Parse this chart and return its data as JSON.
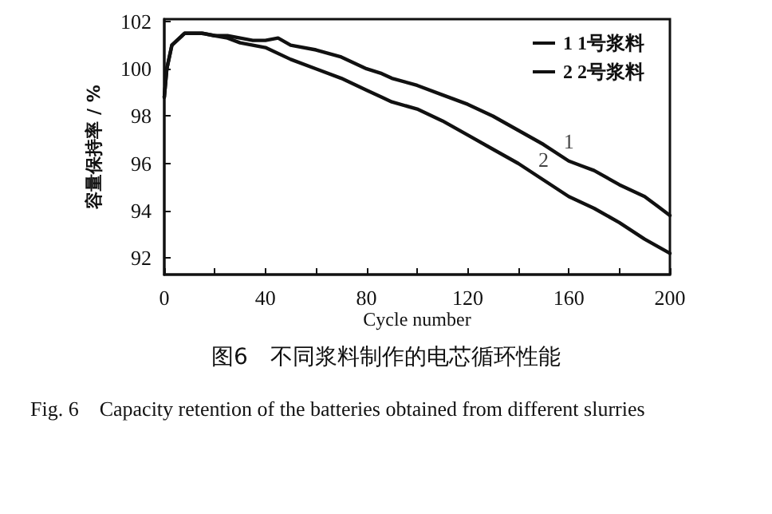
{
  "chart_data": {
    "type": "line",
    "title": "图6　不同浆料制作的电芯循环性能",
    "subtitle": "Fig. 6　Capacity retention of the batteries obtained from different slurries",
    "xlabel": "Cycle number",
    "ylabel": "容量保持率 / %",
    "xlim": [
      0,
      200
    ],
    "xticks": [
      0,
      {
        "value": 20,
        "label": null
      },
      40,
      {
        "value": 60,
        "label": null
      },
      80,
      {
        "value": 100,
        "label": null
      },
      120,
      {
        "value": 140,
        "label": null
      },
      160,
      {
        "value": 180,
        "label": null
      },
      200
    ],
    "ylim": [
      91.3,
      102.1
    ],
    "yticks": [
      92,
      94,
      96,
      98,
      100,
      102
    ],
    "grid": false,
    "legend": "top right",
    "marker": "none",
    "line_style": "solid",
    "series": [
      {
        "name": "1 1号浆料",
        "color": "#111111",
        "x": [
          0,
          1,
          3,
          8,
          15,
          20,
          25,
          30,
          35,
          40,
          45,
          50,
          60,
          70,
          80,
          86,
          90,
          100,
          110,
          120,
          130,
          140,
          150,
          160,
          165,
          170,
          180,
          190,
          195,
          200
        ],
        "values": [
          98.8,
          100,
          101,
          101.5,
          101.5,
          101.4,
          101.4,
          101.3,
          101.2,
          101.2,
          101.3,
          101,
          100.8,
          100.5,
          100,
          99.8,
          99.6,
          99.3,
          98.9,
          98.5,
          98,
          97.4,
          96.8,
          96.1,
          95.9,
          95.7,
          95.1,
          94.6,
          94.2,
          93.8
        ]
      },
      {
        "name": "2 2号浆料",
        "color": "#111111",
        "x": [
          0,
          1,
          3,
          8,
          15,
          20,
          25,
          30,
          40,
          50,
          60,
          70,
          80,
          86,
          90,
          100,
          110,
          120,
          130,
          140,
          150,
          160,
          170,
          180,
          190,
          200
        ],
        "values": [
          98.8,
          100,
          101,
          101.5,
          101.5,
          101.4,
          101.3,
          101.1,
          100.9,
          100.4,
          100,
          99.6,
          99.1,
          98.8,
          98.6,
          98.3,
          97.8,
          97.2,
          96.6,
          96,
          95.3,
          94.6,
          94.1,
          93.5,
          92.8,
          92.2
        ]
      }
    ],
    "annotations": [
      {
        "text": "1",
        "x": 160,
        "y": 96.1
      },
      {
        "text": "2",
        "x": 150,
        "y": 95.3
      }
    ]
  }
}
